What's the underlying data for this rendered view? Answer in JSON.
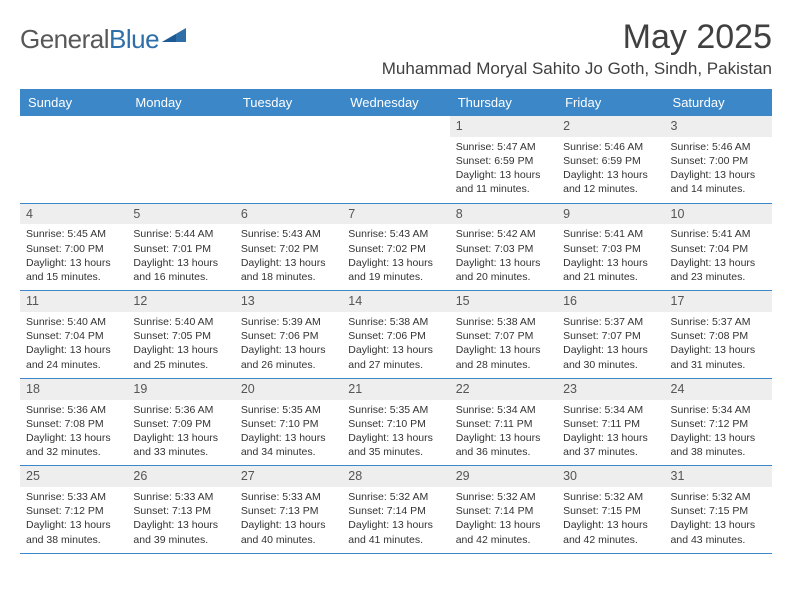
{
  "brand": {
    "part1": "General",
    "part2": "Blue"
  },
  "title": "May 2025",
  "location": "Muhammad Moryal Sahito Jo Goth, Sindh, Pakistan",
  "colors": {
    "header_bg": "#3b87c8",
    "header_text": "#ffffff",
    "daynum_bg": "#eeeeee",
    "border": "#3b87c8",
    "title_color": "#404040",
    "body_text": "#333333"
  },
  "day_headers": [
    "Sunday",
    "Monday",
    "Tuesday",
    "Wednesday",
    "Thursday",
    "Friday",
    "Saturday"
  ],
  "weeks": [
    [
      {
        "n": "",
        "sr": "",
        "ss": "",
        "dl": ""
      },
      {
        "n": "",
        "sr": "",
        "ss": "",
        "dl": ""
      },
      {
        "n": "",
        "sr": "",
        "ss": "",
        "dl": ""
      },
      {
        "n": "",
        "sr": "",
        "ss": "",
        "dl": ""
      },
      {
        "n": "1",
        "sr": "Sunrise: 5:47 AM",
        "ss": "Sunset: 6:59 PM",
        "dl": "Daylight: 13 hours and 11 minutes."
      },
      {
        "n": "2",
        "sr": "Sunrise: 5:46 AM",
        "ss": "Sunset: 6:59 PM",
        "dl": "Daylight: 13 hours and 12 minutes."
      },
      {
        "n": "3",
        "sr": "Sunrise: 5:46 AM",
        "ss": "Sunset: 7:00 PM",
        "dl": "Daylight: 13 hours and 14 minutes."
      }
    ],
    [
      {
        "n": "4",
        "sr": "Sunrise: 5:45 AM",
        "ss": "Sunset: 7:00 PM",
        "dl": "Daylight: 13 hours and 15 minutes."
      },
      {
        "n": "5",
        "sr": "Sunrise: 5:44 AM",
        "ss": "Sunset: 7:01 PM",
        "dl": "Daylight: 13 hours and 16 minutes."
      },
      {
        "n": "6",
        "sr": "Sunrise: 5:43 AM",
        "ss": "Sunset: 7:02 PM",
        "dl": "Daylight: 13 hours and 18 minutes."
      },
      {
        "n": "7",
        "sr": "Sunrise: 5:43 AM",
        "ss": "Sunset: 7:02 PM",
        "dl": "Daylight: 13 hours and 19 minutes."
      },
      {
        "n": "8",
        "sr": "Sunrise: 5:42 AM",
        "ss": "Sunset: 7:03 PM",
        "dl": "Daylight: 13 hours and 20 minutes."
      },
      {
        "n": "9",
        "sr": "Sunrise: 5:41 AM",
        "ss": "Sunset: 7:03 PM",
        "dl": "Daylight: 13 hours and 21 minutes."
      },
      {
        "n": "10",
        "sr": "Sunrise: 5:41 AM",
        "ss": "Sunset: 7:04 PM",
        "dl": "Daylight: 13 hours and 23 minutes."
      }
    ],
    [
      {
        "n": "11",
        "sr": "Sunrise: 5:40 AM",
        "ss": "Sunset: 7:04 PM",
        "dl": "Daylight: 13 hours and 24 minutes."
      },
      {
        "n": "12",
        "sr": "Sunrise: 5:40 AM",
        "ss": "Sunset: 7:05 PM",
        "dl": "Daylight: 13 hours and 25 minutes."
      },
      {
        "n": "13",
        "sr": "Sunrise: 5:39 AM",
        "ss": "Sunset: 7:06 PM",
        "dl": "Daylight: 13 hours and 26 minutes."
      },
      {
        "n": "14",
        "sr": "Sunrise: 5:38 AM",
        "ss": "Sunset: 7:06 PM",
        "dl": "Daylight: 13 hours and 27 minutes."
      },
      {
        "n": "15",
        "sr": "Sunrise: 5:38 AM",
        "ss": "Sunset: 7:07 PM",
        "dl": "Daylight: 13 hours and 28 minutes."
      },
      {
        "n": "16",
        "sr": "Sunrise: 5:37 AM",
        "ss": "Sunset: 7:07 PM",
        "dl": "Daylight: 13 hours and 30 minutes."
      },
      {
        "n": "17",
        "sr": "Sunrise: 5:37 AM",
        "ss": "Sunset: 7:08 PM",
        "dl": "Daylight: 13 hours and 31 minutes."
      }
    ],
    [
      {
        "n": "18",
        "sr": "Sunrise: 5:36 AM",
        "ss": "Sunset: 7:08 PM",
        "dl": "Daylight: 13 hours and 32 minutes."
      },
      {
        "n": "19",
        "sr": "Sunrise: 5:36 AM",
        "ss": "Sunset: 7:09 PM",
        "dl": "Daylight: 13 hours and 33 minutes."
      },
      {
        "n": "20",
        "sr": "Sunrise: 5:35 AM",
        "ss": "Sunset: 7:10 PM",
        "dl": "Daylight: 13 hours and 34 minutes."
      },
      {
        "n": "21",
        "sr": "Sunrise: 5:35 AM",
        "ss": "Sunset: 7:10 PM",
        "dl": "Daylight: 13 hours and 35 minutes."
      },
      {
        "n": "22",
        "sr": "Sunrise: 5:34 AM",
        "ss": "Sunset: 7:11 PM",
        "dl": "Daylight: 13 hours and 36 minutes."
      },
      {
        "n": "23",
        "sr": "Sunrise: 5:34 AM",
        "ss": "Sunset: 7:11 PM",
        "dl": "Daylight: 13 hours and 37 minutes."
      },
      {
        "n": "24",
        "sr": "Sunrise: 5:34 AM",
        "ss": "Sunset: 7:12 PM",
        "dl": "Daylight: 13 hours and 38 minutes."
      }
    ],
    [
      {
        "n": "25",
        "sr": "Sunrise: 5:33 AM",
        "ss": "Sunset: 7:12 PM",
        "dl": "Daylight: 13 hours and 38 minutes."
      },
      {
        "n": "26",
        "sr": "Sunrise: 5:33 AM",
        "ss": "Sunset: 7:13 PM",
        "dl": "Daylight: 13 hours and 39 minutes."
      },
      {
        "n": "27",
        "sr": "Sunrise: 5:33 AM",
        "ss": "Sunset: 7:13 PM",
        "dl": "Daylight: 13 hours and 40 minutes."
      },
      {
        "n": "28",
        "sr": "Sunrise: 5:32 AM",
        "ss": "Sunset: 7:14 PM",
        "dl": "Daylight: 13 hours and 41 minutes."
      },
      {
        "n": "29",
        "sr": "Sunrise: 5:32 AM",
        "ss": "Sunset: 7:14 PM",
        "dl": "Daylight: 13 hours and 42 minutes."
      },
      {
        "n": "30",
        "sr": "Sunrise: 5:32 AM",
        "ss": "Sunset: 7:15 PM",
        "dl": "Daylight: 13 hours and 42 minutes."
      },
      {
        "n": "31",
        "sr": "Sunrise: 5:32 AM",
        "ss": "Sunset: 7:15 PM",
        "dl": "Daylight: 13 hours and 43 minutes."
      }
    ]
  ]
}
